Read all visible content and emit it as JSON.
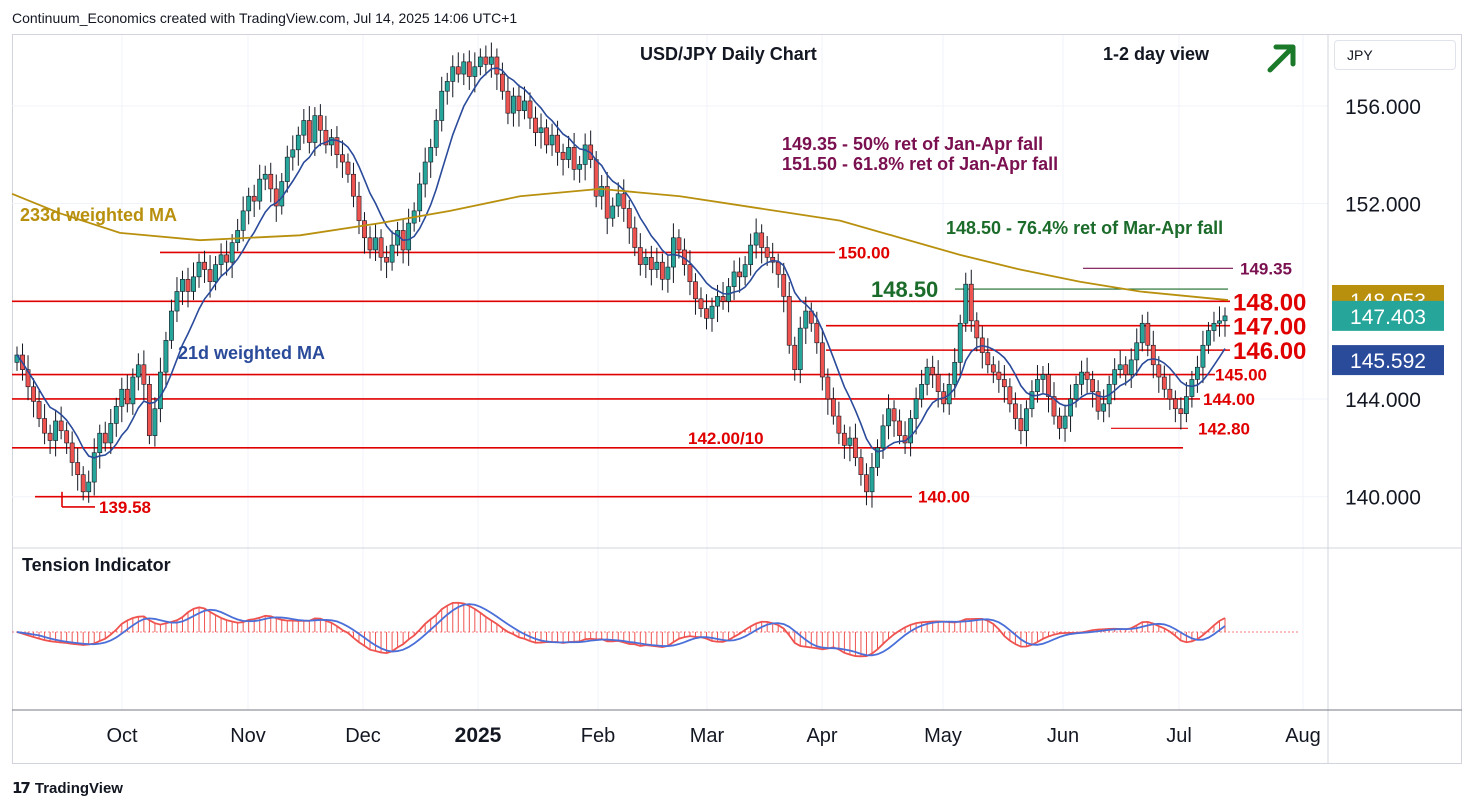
{
  "header": "Continuum_Economics created with TradingView.com, Jul 14, 2025 14:06 UTC+1",
  "pair_box": "JPY",
  "footer": "TradingView",
  "colors": {
    "up": "#26a69a",
    "down": "#ef5350",
    "ma21": "#2a4a9a",
    "ma233": "#b8900e",
    "resistance": "#e00000",
    "green_text": "#1b6b2a",
    "purple": "#7a1050"
  },
  "chart_data": {
    "type": "candlestick",
    "title": "USD/JPY Daily Chart",
    "view": "1-2 day view",
    "view_icon": "arrow-up-right-icon",
    "ylim": [
      137.9,
      158.9
    ],
    "y_ticks": [
      "156.000",
      "152.000",
      "144.000",
      "140.000"
    ],
    "y_tick_values": [
      156,
      152,
      144,
      140
    ],
    "x_labels": [
      "Oct",
      "Nov",
      "Dec",
      "2025",
      "Feb",
      "Mar",
      "Apr",
      "May",
      "Jun",
      "Jul",
      "Aug"
    ],
    "series_labels": {
      "ma233": "233d weighted MA",
      "ma21": "21d weighted MA"
    },
    "price_tags": [
      {
        "label": "148.053",
        "value": 148.053,
        "color": "#b8900e"
      },
      {
        "label": "147.403",
        "value": 147.403,
        "color": "#26a69a"
      },
      {
        "label": "145.592",
        "value": 145.592,
        "color": "#2a4a9a"
      }
    ],
    "levels": [
      {
        "label": "148.00",
        "value": 148.0,
        "big": true
      },
      {
        "label": "147.00",
        "value": 147.0,
        "big": true
      },
      {
        "label": "146.00",
        "value": 146.0,
        "big": true
      },
      {
        "label": "145.00",
        "value": 145.0,
        "big": false
      },
      {
        "label": "144.00",
        "value": 144.0,
        "big": false
      },
      {
        "label": "150.00",
        "value": 150.0,
        "big": false
      },
      {
        "label": "142.00/10",
        "value": 142.0,
        "big": false
      },
      {
        "label": "142.80",
        "value": 142.8,
        "big": false
      },
      {
        "label": "140.00",
        "value": 140.0,
        "big": false
      },
      {
        "label": "139.58",
        "value": 139.58,
        "big": false
      },
      {
        "label": "148.50",
        "value": 148.5,
        "big": true,
        "green": true
      },
      {
        "label": "149.35",
        "value": 149.35,
        "big": false,
        "purple": true
      }
    ],
    "annotations": [
      "149.35 - 50% ret of Jan-Apr fall",
      "151.50 - 61.8% ret of Jan-Apr fall",
      "148.50 - 76.4% ret of Mar-Apr fall"
    ],
    "indicator": {
      "title": "Tension Indicator"
    },
    "close_path": [
      145.8,
      145.2,
      144.5,
      143.9,
      143.2,
      142.6,
      142.3,
      143.1,
      142.7,
      142.2,
      141.4,
      140.9,
      140.2,
      140.6,
      141.8,
      142.6,
      142.2,
      143.0,
      143.7,
      144.4,
      143.8,
      144.9,
      145.4,
      144.6,
      142.5,
      143.6,
      145.1,
      146.4,
      147.6,
      148.4,
      148.9,
      148.4,
      149.0,
      149.6,
      149.3,
      148.8,
      149.5,
      149.9,
      149.6,
      150.4,
      150.9,
      151.7,
      152.3,
      152.1,
      153.0,
      153.2,
      152.6,
      151.9,
      152.9,
      153.9,
      154.2,
      154.8,
      155.4,
      154.5,
      155.6,
      155.0,
      154.4,
      154.7,
      154.0,
      153.7,
      153.2,
      152.3,
      151.3,
      150.6,
      150.1,
      150.6,
      149.8,
      149.6,
      150.3,
      150.9,
      150.1,
      151.2,
      151.7,
      152.8,
      153.7,
      154.3,
      155.4,
      156.6,
      157.0,
      157.6,
      157.3,
      157.8,
      157.2,
      157.6,
      158.0,
      157.7,
      158.0,
      157.3,
      156.6,
      155.7,
      156.4,
      155.8,
      156.2,
      155.5,
      154.9,
      155.1,
      154.4,
      154.8,
      154.1,
      153.8,
      154.3,
      153.4,
      153.6,
      154.4,
      153.8,
      152.3,
      152.7,
      151.4,
      151.9,
      152.4,
      151.8,
      151.0,
      150.2,
      149.5,
      149.8,
      149.3,
      149.6,
      148.9,
      149.4,
      150.6,
      150.1,
      149.5,
      148.8,
      148.1,
      147.7,
      147.3,
      147.8,
      148.2,
      148.0,
      148.6,
      149.2,
      149.0,
      149.5,
      150.3,
      150.8,
      150.2,
      149.8,
      149.6,
      149.1,
      148.2,
      146.2,
      145.2,
      146.9,
      147.6,
      147.1,
      146.3,
      144.9,
      144.0,
      143.3,
      142.6,
      142.1,
      142.4,
      141.6,
      140.9,
      140.2,
      141.2,
      142.0,
      142.9,
      143.6,
      143.1,
      142.5,
      142.2,
      143.2,
      144.0,
      144.6,
      145.3,
      145.0,
      144.3,
      143.8,
      144.6,
      145.5,
      147.1,
      148.7,
      147.2,
      146.5,
      145.9,
      145.4,
      145.1,
      144.8,
      144.5,
      143.8,
      143.2,
      142.7,
      143.6,
      144.3,
      144.8,
      145.0,
      144.1,
      143.3,
      142.8,
      143.3,
      144.0,
      144.6,
      145.1,
      144.8,
      144.3,
      143.5,
      143.8,
      144.6,
      145.2,
      145.4,
      145.0,
      145.6,
      146.3,
      147.1,
      146.2,
      145.4,
      144.9,
      144.4,
      144.0,
      143.6,
      143.4,
      144.1,
      144.8,
      145.3,
      146.2,
      146.8,
      147.1,
      147.2,
      147.4
    ]
  }
}
